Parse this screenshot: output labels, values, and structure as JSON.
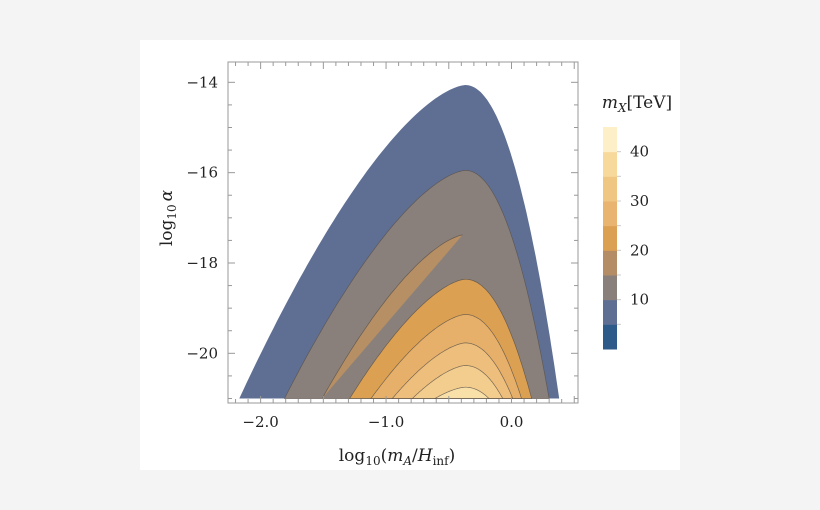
{
  "chart_data": {
    "type": "contour",
    "xlabel": {
      "base": "log",
      "sub": "10",
      "open": "(",
      "num": "m",
      "num_sub": "A",
      "slash": "/",
      "den": "H",
      "den_sub": "inf",
      "close": ")"
    },
    "ylabel": {
      "base": "log",
      "sub": "10",
      "var": "α"
    },
    "xlim": [
      -2.26,
      0.53
    ],
    "ylim": [
      -21.1,
      -13.55
    ],
    "x_ticks": [
      {
        "value": -2.0,
        "label": "−2.0"
      },
      {
        "value": -1.0,
        "label": "−1.0"
      },
      {
        "value": 0.0,
        "label": "0.0"
      }
    ],
    "y_ticks": [
      {
        "value": -14,
        "label": "−14"
      },
      {
        "value": -16,
        "label": "−16"
      },
      {
        "value": -18,
        "label": "−18"
      },
      {
        "value": -20,
        "label": "−20"
      }
    ],
    "contours": [
      {
        "level": 5,
        "peak": [
          -0.37,
          -14.06
        ],
        "left_foot": -2.17,
        "right_foot": 0.38,
        "fill": "#5f6f94"
      },
      {
        "level": 10,
        "peak": [
          -0.37,
          -15.95
        ],
        "left_foot": -1.81,
        "right_foot": 0.3,
        "fill": "#8a807b"
      },
      {
        "level": 15,
        "peak": [
          -0.37,
          -17.37
        ],
        "left_foot": -1.51,
        "right_foot": 0.22,
        "fill": "#b68f64"
      },
      {
        "level": 20,
        "peak": [
          -0.37,
          -18.36
        ],
        "left_foot": -1.29,
        "right_foot": 0.16,
        "fill": "#dca052"
      },
      {
        "level": 25,
        "peak": [
          -0.37,
          -19.14
        ],
        "left_foot": -1.12,
        "right_foot": 0.08,
        "fill": "#e6b06a"
      },
      {
        "level": 30,
        "peak": [
          -0.37,
          -19.77
        ],
        "left_foot": -0.95,
        "right_foot": 0.01,
        "fill": "#eebf7c"
      },
      {
        "level": 35,
        "peak": [
          -0.37,
          -20.27
        ],
        "left_foot": -0.79,
        "right_foot": -0.07,
        "fill": "#f3cd8e"
      },
      {
        "level": 40,
        "peak": [
          -0.37,
          -20.75
        ],
        "left_foot": -0.61,
        "right_foot": -0.18,
        "fill": "#f8e0a8"
      }
    ],
    "colorbar": {
      "title": {
        "var": "m",
        "sub": "X",
        "unit": "[TeV]"
      },
      "range": [
        0,
        45
      ],
      "bands": [
        {
          "from": 0,
          "to": 5,
          "color": "#2e5a8a"
        },
        {
          "from": 5,
          "to": 10,
          "color": "#5f6f94"
        },
        {
          "from": 10,
          "to": 15,
          "color": "#8a807b"
        },
        {
          "from": 15,
          "to": 20,
          "color": "#b48d66"
        },
        {
          "from": 20,
          "to": 25,
          "color": "#dca052"
        },
        {
          "from": 25,
          "to": 30,
          "color": "#e8b46f"
        },
        {
          "from": 30,
          "to": 35,
          "color": "#f0c683"
        },
        {
          "from": 35,
          "to": 40,
          "color": "#f7d99b"
        },
        {
          "from": 40,
          "to": 45,
          "color": "#fdf0c8"
        }
      ],
      "ticks": [
        {
          "value": 10,
          "label": "10"
        },
        {
          "value": 20,
          "label": "20"
        },
        {
          "value": 30,
          "label": "30"
        },
        {
          "value": 40,
          "label": "40"
        }
      ]
    }
  }
}
